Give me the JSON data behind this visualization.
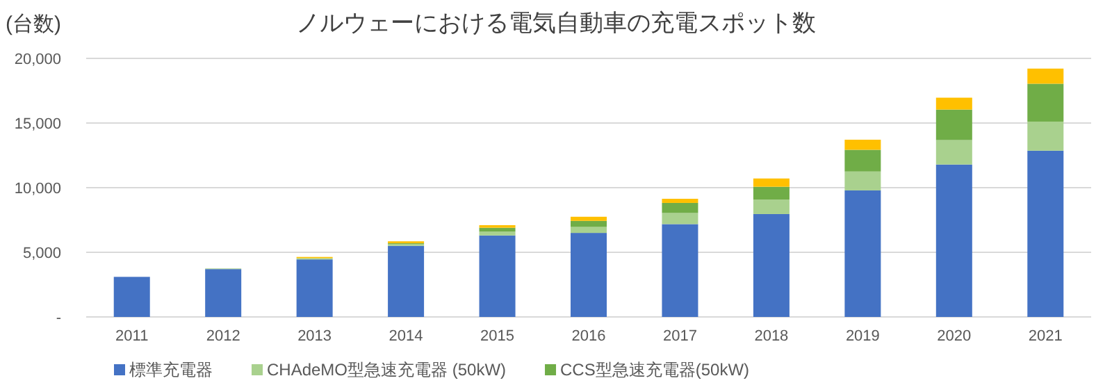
{
  "chart_data": {
    "type": "bar",
    "stacked": true,
    "title": "ノルウェーにおける電気自動車の充電スポット数",
    "ylabel": "(台数)",
    "categories": [
      "2011",
      "2012",
      "2013",
      "2014",
      "2015",
      "2016",
      "2017",
      "2018",
      "2019",
      "2020",
      "2021"
    ],
    "series": [
      {
        "name": "標準充電器",
        "color": "#4472c4",
        "values": [
          3100,
          3700,
          4450,
          5500,
          6300,
          6500,
          7180,
          7960,
          9790,
          11790,
          12860
        ]
      },
      {
        "name": "CHAdeMO型急速充電器 (50kW)",
        "color": "#a9d18e",
        "values": [
          0,
          50,
          100,
          150,
          300,
          460,
          860,
          1110,
          1460,
          1890,
          2250
        ]
      },
      {
        "name": "CCS型急速充電器(50kW)",
        "color": "#70ad47",
        "values": [
          0,
          0,
          0,
          50,
          300,
          470,
          780,
          1000,
          1680,
          2360,
          2930
        ]
      },
      {
        "color": "#ffc000",
        "values": [
          0,
          0,
          90,
          150,
          200,
          320,
          320,
          640,
          780,
          920,
          1170
        ]
      }
    ],
    "ylim": [
      0,
      20000
    ],
    "yticks": [
      {
        "value": 0,
        "label": "-"
      },
      {
        "value": 5000,
        "label": "5,000"
      },
      {
        "value": 10000,
        "label": "10,000"
      },
      {
        "value": 15000,
        "label": "15,000"
      },
      {
        "value": 20000,
        "label": "20,000"
      }
    ],
    "grid": "y",
    "legend": "bottom"
  }
}
